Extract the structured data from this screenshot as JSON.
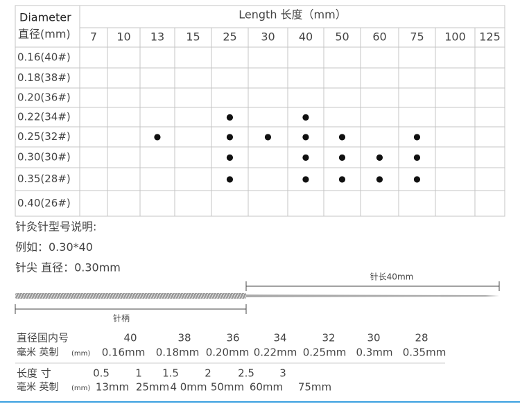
{
  "table": {
    "header": {
      "diameter": "Diameter",
      "diameter_cn": "直径(mm)",
      "length": "Length  长度（mm）",
      "lengths": [
        7,
        10,
        13,
        15,
        25,
        30,
        40,
        50,
        60,
        75,
        100,
        125
      ]
    },
    "rows": [
      {
        "label": "0.16(40#)",
        "cells": [
          null,
          null,
          null,
          null,
          null,
          null,
          null,
          null,
          null,
          null,
          null,
          null
        ]
      },
      {
        "label": "0.18(38#)",
        "cells": [
          null,
          null,
          null,
          null,
          null,
          null,
          null,
          null,
          null,
          null,
          null,
          null
        ]
      },
      {
        "label": "0.20(36#)",
        "cells": [
          null,
          null,
          null,
          null,
          null,
          null,
          null,
          null,
          null,
          null,
          null,
          null
        ]
      },
      {
        "label": "0.22(34#)",
        "cells": [
          null,
          null,
          null,
          null,
          "●",
          null,
          "●",
          null,
          null,
          null,
          null,
          null
        ]
      },
      {
        "label": "0.25(32#)",
        "cells": [
          null,
          null,
          "●",
          null,
          "●",
          "●",
          "●",
          "●",
          null,
          "●",
          null,
          null
        ]
      },
      {
        "label": "0.30(30#)",
        "cells": [
          null,
          null,
          null,
          null,
          "●",
          null,
          "●",
          "●",
          "●",
          "●",
          null,
          null
        ]
      },
      {
        "label": "0.35(28#)",
        "cells": [
          null,
          null,
          null,
          null,
          "●",
          null,
          "●",
          "●",
          "●",
          "●",
          null,
          null
        ]
      },
      {
        "label": "0.40(26#)",
        "cells": [
          null,
          null,
          null,
          null,
          null,
          null,
          null,
          null,
          null,
          null,
          null,
          null
        ]
      }
    ]
  },
  "notes": [
    "针灸针型号说明:",
    "例如：0.30*40",
    "针尖  直径：0.30mm"
  ],
  "diagram": {
    "length_label": "针长40mm",
    "handle_label": "针柄"
  },
  "gauge_table": {
    "label1": "直径国内号",
    "gauges": [
      40,
      38,
      36,
      34,
      32,
      30,
      28
    ],
    "label2": "毫米 英制",
    "unit": "(mm)",
    "diameters": [
      "0.16mm",
      "0.18mm",
      "0.20mm",
      "0.22mm",
      "0.25mm",
      "0.3mm",
      "0.35mm"
    ]
  },
  "length_table": {
    "label1": "长度 寸",
    "cun": [
      0.5,
      1,
      1.5,
      2,
      2.5,
      3
    ],
    "label2": "毫米 英制",
    "unit": "(mm)",
    "mm": [
      "13mm",
      "25mm",
      "4 0mm",
      "50mm",
      "60mm",
      "75mm"
    ]
  }
}
